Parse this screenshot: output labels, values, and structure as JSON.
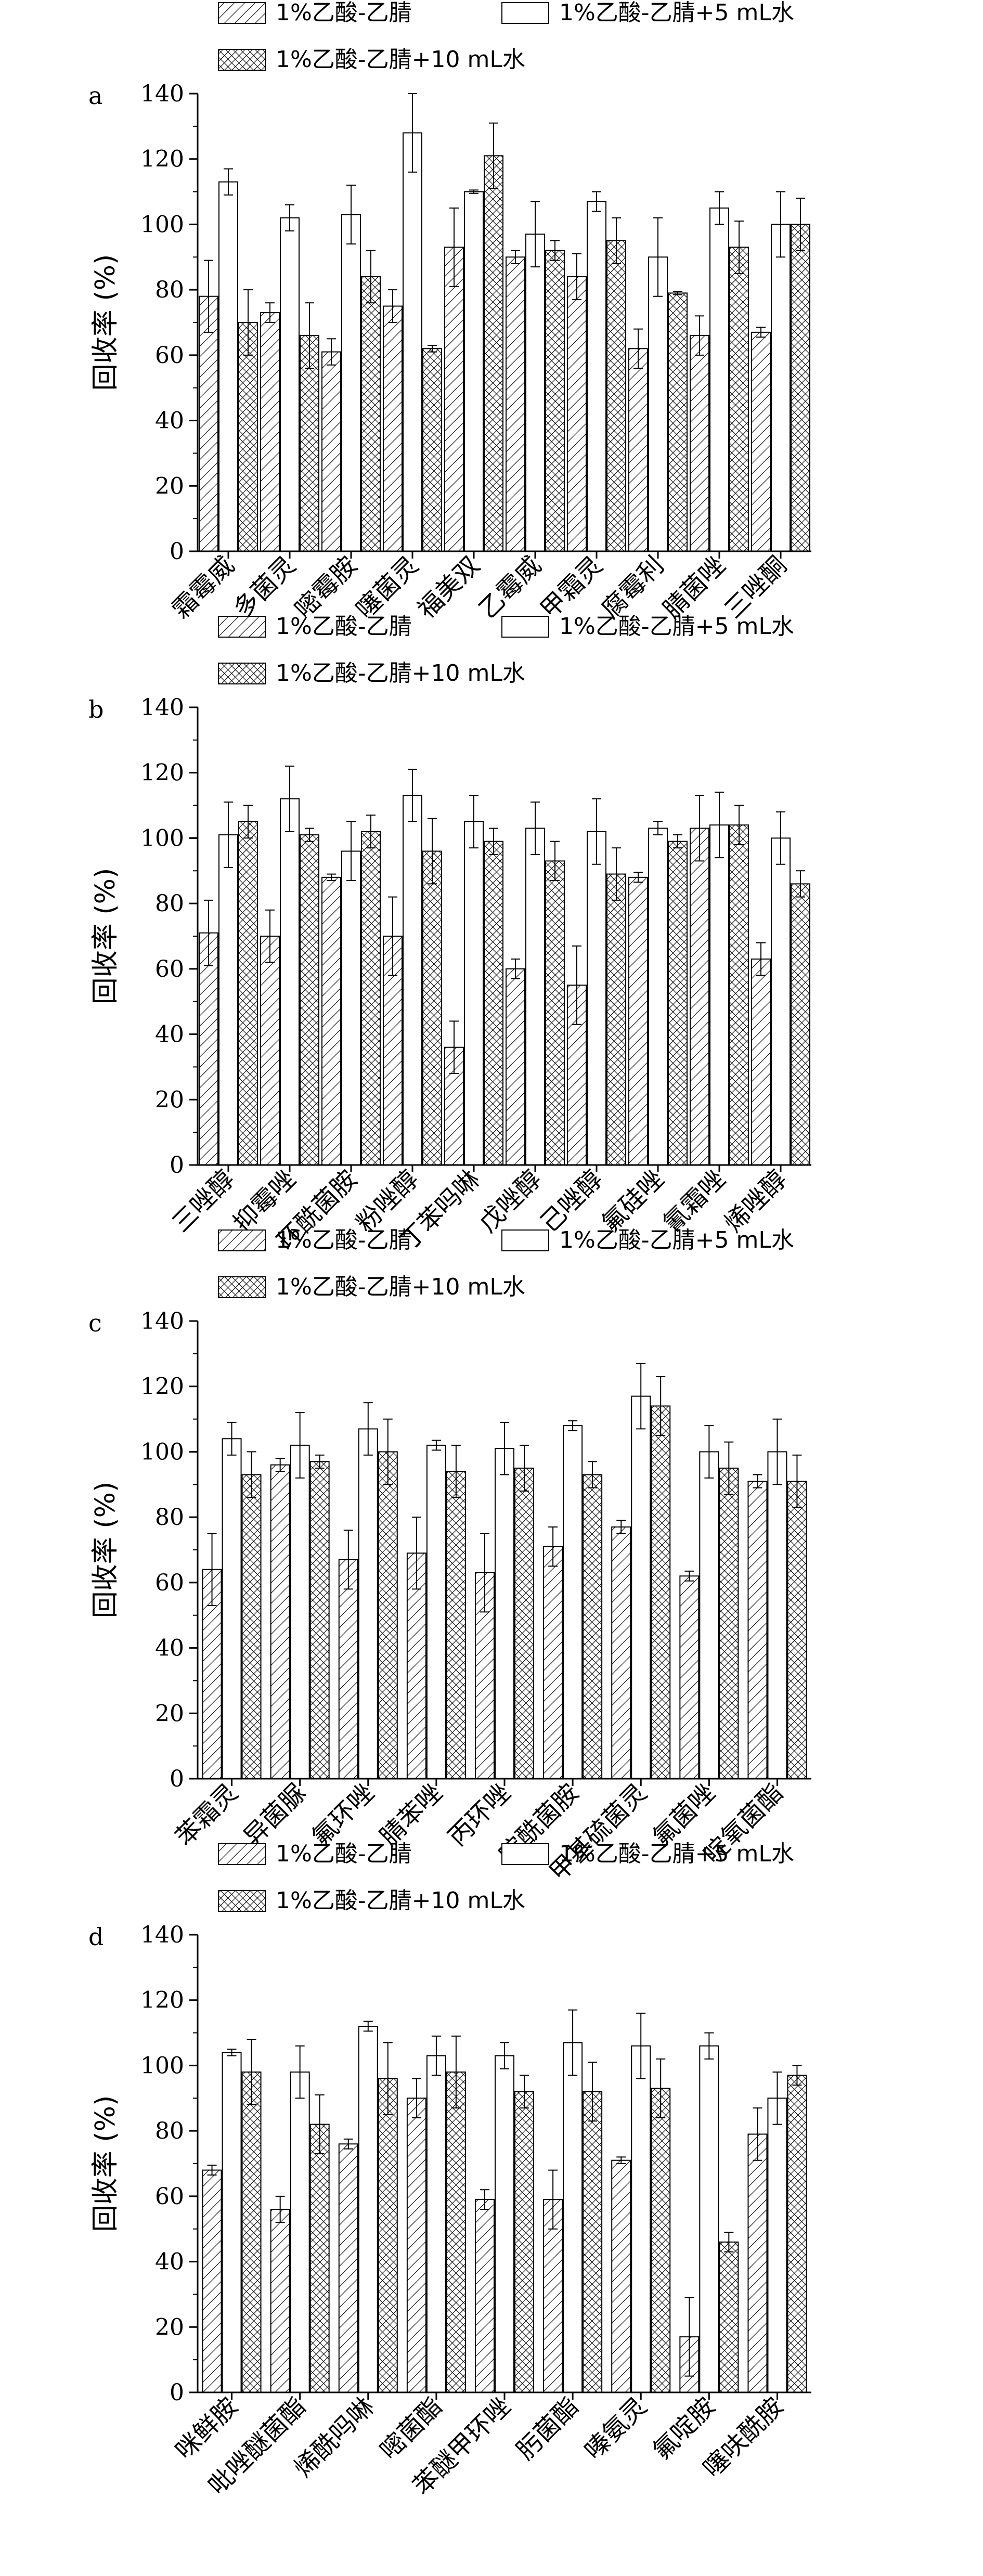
{
  "chart_data": [
    {
      "type": "bar",
      "panel_label": "a",
      "ylabel": "回收率 (%)",
      "ylim": [
        0,
        140
      ],
      "yticks": [
        0,
        20,
        40,
        60,
        80,
        100,
        120,
        140
      ],
      "categories": [
        "霜霉威",
        "多菌灵",
        "嘧霉胺",
        "噻菌灵",
        "福美双",
        "乙霉威",
        "甲霜灵",
        "腐霉利",
        "腈菌唑",
        "三唑酮"
      ],
      "series": [
        {
          "name": "1%乙酸-乙腈",
          "pattern": "hatch",
          "values": [
            78,
            73,
            61,
            75,
            93,
            90,
            84,
            62,
            66,
            67
          ],
          "errors": [
            11,
            3,
            4,
            5,
            12,
            2,
            7,
            6,
            6,
            1.5
          ]
        },
        {
          "name": "1%乙酸-乙腈+5 mL水",
          "pattern": "empty",
          "values": [
            113,
            102,
            103,
            128,
            110,
            97,
            107,
            90,
            105,
            100
          ],
          "errors": [
            4,
            4,
            9,
            12,
            0.5,
            10,
            3,
            12,
            5,
            10
          ]
        },
        {
          "name": "1%乙酸-乙腈+10 mL水",
          "pattern": "crosshatch",
          "values": [
            70,
            66,
            84,
            62,
            121,
            92,
            95,
            79,
            93,
            100
          ],
          "errors": [
            10,
            10,
            8,
            1,
            10,
            3,
            7,
            0.5,
            8,
            8
          ]
        }
      ]
    },
    {
      "type": "bar",
      "panel_label": "b",
      "ylabel": "回收率 (%)",
      "ylim": [
        0,
        140
      ],
      "yticks": [
        0,
        20,
        40,
        60,
        80,
        100,
        120,
        140
      ],
      "categories": [
        "三唑醇",
        "抑霉唑",
        "环酰菌胺",
        "粉唑醇",
        "丁苯吗啉",
        "戊唑醇",
        "己唑醇",
        "氟硅唑",
        "氰霜唑",
        "烯唑醇"
      ],
      "series": [
        {
          "name": "1%乙酸-乙腈",
          "pattern": "hatch",
          "values": [
            71,
            70,
            88,
            70,
            36,
            60,
            55,
            88,
            103,
            63
          ],
          "errors": [
            10,
            8,
            1,
            12,
            8,
            3,
            12,
            1.5,
            10,
            5
          ]
        },
        {
          "name": "1%乙酸-乙腈+5 mL水",
          "pattern": "empty",
          "values": [
            101,
            112,
            96,
            113,
            105,
            103,
            102,
            103,
            104,
            100
          ],
          "errors": [
            10,
            10,
            9,
            8,
            8,
            8,
            10,
            2,
            10,
            8
          ]
        },
        {
          "name": "1%乙酸-乙腈+10 mL水",
          "pattern": "crosshatch",
          "values": [
            105,
            101,
            102,
            96,
            99,
            93,
            89,
            99,
            104,
            86
          ],
          "errors": [
            5,
            2,
            5,
            10,
            4,
            6,
            8,
            2,
            6,
            4
          ]
        }
      ]
    },
    {
      "type": "bar",
      "panel_label": "c",
      "ylabel": "回收率 (%)",
      "ylim": [
        0,
        140
      ],
      "yticks": [
        0,
        20,
        40,
        60,
        80,
        100,
        120,
        140
      ],
      "categories": [
        "苯霜灵",
        "异菌脲",
        "氟环唑",
        "腈苯唑",
        "丙环唑",
        "啶酰菌胺",
        "甲基硫菌灵",
        "氟菌唑",
        "啶氧菌酯"
      ],
      "series": [
        {
          "name": "1%乙酸-乙腈",
          "pattern": "hatch",
          "values": [
            64,
            96,
            67,
            69,
            63,
            71,
            77,
            62,
            91
          ],
          "errors": [
            11,
            2,
            9,
            11,
            12,
            6,
            2,
            1.5,
            2
          ]
        },
        {
          "name": "1%乙酸-乙腈+5 mL水",
          "pattern": "empty",
          "values": [
            104,
            102,
            107,
            102,
            101,
            108,
            117,
            100,
            100
          ],
          "errors": [
            5,
            10,
            8,
            1.5,
            8,
            1.5,
            10,
            8,
            10
          ]
        },
        {
          "name": "1%乙酸-乙腈+10 mL水",
          "pattern": "crosshatch",
          "values": [
            93,
            97,
            100,
            94,
            95,
            93,
            114,
            95,
            91
          ],
          "errors": [
            7,
            2,
            10,
            8,
            7,
            4,
            9,
            8,
            8
          ]
        }
      ]
    },
    {
      "type": "bar",
      "panel_label": "d",
      "ylabel": "回收率 (%)",
      "ylim": [
        0,
        140
      ],
      "yticks": [
        0,
        20,
        40,
        60,
        80,
        100,
        120,
        140
      ],
      "categories": [
        "咪鲜胺",
        "吡唑醚菌酯",
        "烯酰吗啉",
        "嘧菌酯",
        "苯醚甲环唑",
        "肟菌酯",
        "嗪氨灵",
        "氟啶胺",
        "噻呋酰胺"
      ],
      "series": [
        {
          "name": "1%乙酸-乙腈",
          "pattern": "hatch",
          "values": [
            68,
            56,
            76,
            90,
            59,
            59,
            71,
            17,
            79
          ],
          "errors": [
            1.5,
            4,
            1.5,
            6,
            3,
            9,
            1,
            12,
            8
          ]
        },
        {
          "name": "1%乙酸-乙腈+5 mL水",
          "pattern": "empty",
          "values": [
            104,
            98,
            112,
            103,
            103,
            107,
            106,
            106,
            90
          ],
          "errors": [
            1,
            8,
            1.5,
            6,
            4,
            10,
            10,
            4,
            8
          ]
        },
        {
          "name": "1%乙酸-乙腈+10 mL水",
          "pattern": "crosshatch",
          "values": [
            98,
            82,
            96,
            98,
            92,
            92,
            93,
            46,
            97
          ],
          "errors": [
            10,
            9,
            11,
            11,
            5,
            9,
            9,
            3,
            3
          ]
        }
      ]
    }
  ]
}
